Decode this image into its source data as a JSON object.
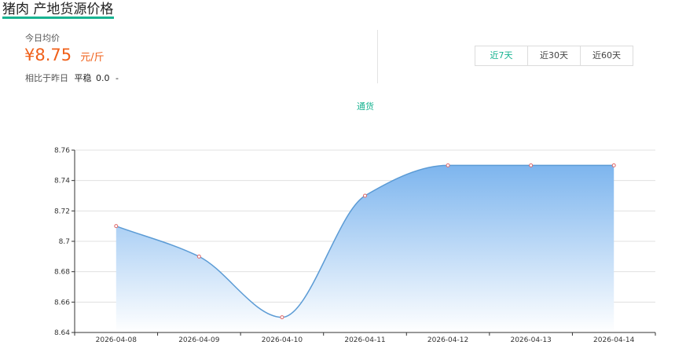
{
  "header": {
    "title": "猪肉 产地货源价格"
  },
  "summary": {
    "avg_label": "今日均价",
    "price": "¥8.75",
    "unit": "元/斤",
    "compare_label": "相比于昨日",
    "compare_status": "平稳",
    "compare_value": "0.0",
    "compare_trend": "-"
  },
  "range_tabs": [
    {
      "label": "近7天",
      "active": true
    },
    {
      "label": "近30天",
      "active": false
    },
    {
      "label": "近60天",
      "active": false
    }
  ],
  "chart_data": {
    "type": "area",
    "series": [
      {
        "name": "通货",
        "values": [
          8.71,
          8.69,
          8.65,
          8.73,
          8.75,
          8.75,
          8.75
        ]
      }
    ],
    "categories": [
      "2026-04-08",
      "2026-04-09",
      "2026-04-10",
      "2026-04-11",
      "2026-04-12",
      "2026-04-13",
      "2026-04-14"
    ],
    "ylim": [
      8.64,
      8.76
    ],
    "yticks": [
      "8.64",
      "8.66",
      "8.68",
      "8.7",
      "8.72",
      "8.74",
      "8.76"
    ],
    "legend_position": "top-center",
    "grid": true,
    "colors": {
      "line": "#5b9bd5",
      "fill_top": "#7db5ee",
      "fill_bottom": "#ffffff",
      "point": "#e06666",
      "axis": "#333333",
      "grid": "#e0e0e0",
      "text": "#333333"
    }
  }
}
